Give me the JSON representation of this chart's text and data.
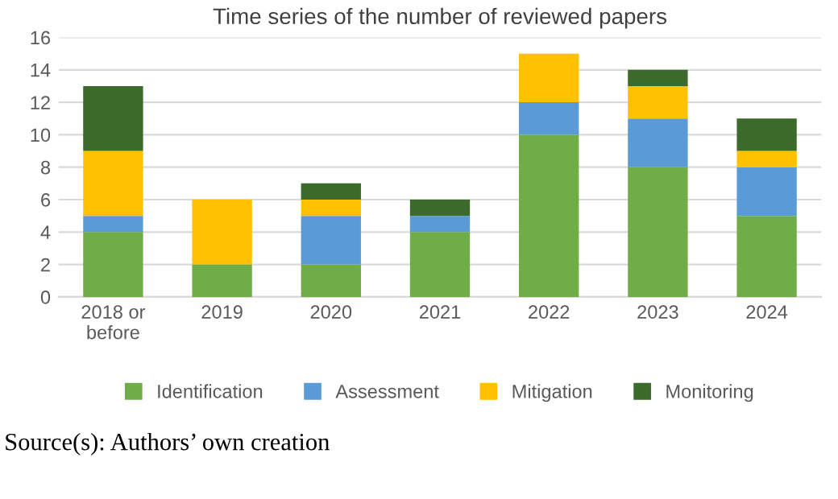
{
  "chart_data": {
    "type": "bar",
    "title": "Time series of the number of reviewed papers",
    "stacked": true,
    "categories": [
      "2018 or\nbefore",
      "2019",
      "2020",
      "2021",
      "2022",
      "2023",
      "2024"
    ],
    "series": [
      {
        "name": "Identification",
        "color": "#70ad47",
        "values": [
          4,
          2,
          2,
          4,
          10,
          8,
          5
        ]
      },
      {
        "name": "Assessment",
        "color": "#5b9bd5",
        "values": [
          1,
          null,
          3,
          1,
          2,
          3,
          3
        ]
      },
      {
        "name": "Mitigation",
        "color": "#ffc000",
        "values": [
          4,
          4,
          1,
          null,
          3,
          2,
          1
        ]
      },
      {
        "name": "Monitoring",
        "color": "#3b6a2a",
        "values": [
          4,
          null,
          1,
          1,
          null,
          1,
          2
        ]
      }
    ],
    "ylim": [
      0,
      16
    ],
    "yticks": [
      0,
      2,
      4,
      6,
      8,
      10,
      12,
      14,
      16
    ],
    "grid": "y",
    "legend": "bottom",
    "annotations": [
      "Source(s): Authors’ own creation"
    ]
  }
}
